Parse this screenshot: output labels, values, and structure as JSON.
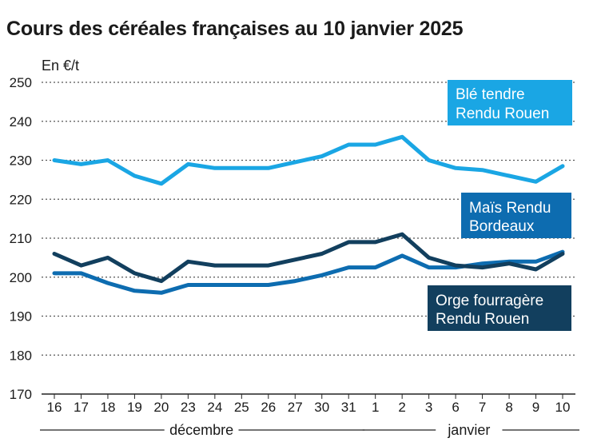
{
  "chart_data": {
    "type": "line",
    "title": "Cours des céréales françaises au 10 janvier 2025",
    "ylabel": "En €/t",
    "ylim": [
      170,
      250
    ],
    "yticks": [
      170,
      180,
      190,
      200,
      210,
      220,
      230,
      240,
      250
    ],
    "categories": [
      "16",
      "17",
      "18",
      "19",
      "20",
      "23",
      "24",
      "25",
      "26",
      "27",
      "30",
      "31",
      "1",
      "2",
      "3",
      "6",
      "7",
      "8",
      "9",
      "10"
    ],
    "groups": [
      {
        "label": "décembre",
        "start": 0,
        "end": 11
      },
      {
        "label": "janvier",
        "start": 12,
        "end": 19
      }
    ],
    "grid": "horizontal-dotted",
    "series": [
      {
        "name": "Blé tendre Rendu Rouen",
        "legend_lines": [
          "Blé tendre",
          "Rendu Rouen"
        ],
        "color": "#1aa6e4",
        "values": [
          230,
          229,
          230,
          226,
          224,
          229,
          228,
          228,
          228,
          229.5,
          231,
          234,
          234,
          236,
          230,
          228,
          227.5,
          226,
          224.5,
          228.5
        ]
      },
      {
        "name": "Maïs Rendu Bordeaux",
        "legend_lines": [
          "Maïs Rendu",
          "Bordeaux"
        ],
        "color": "#0d6cb0",
        "values": [
          201,
          201,
          198.5,
          196.5,
          196,
          198,
          198,
          198,
          198,
          199,
          200.5,
          202.5,
          202.5,
          205.5,
          202.5,
          202.5,
          203.5,
          204,
          204,
          206.5
        ]
      },
      {
        "name": "Orge fourragère Rendu Rouen",
        "legend_lines": [
          "Orge fourragère",
          "Rendu Rouen"
        ],
        "color": "#123f5e",
        "values": [
          206,
          203,
          205,
          201,
          199,
          204,
          203,
          203,
          203,
          204.5,
          206,
          209,
          209,
          211,
          205,
          203,
          202.5,
          203.5,
          202,
          206
        ]
      }
    ]
  }
}
